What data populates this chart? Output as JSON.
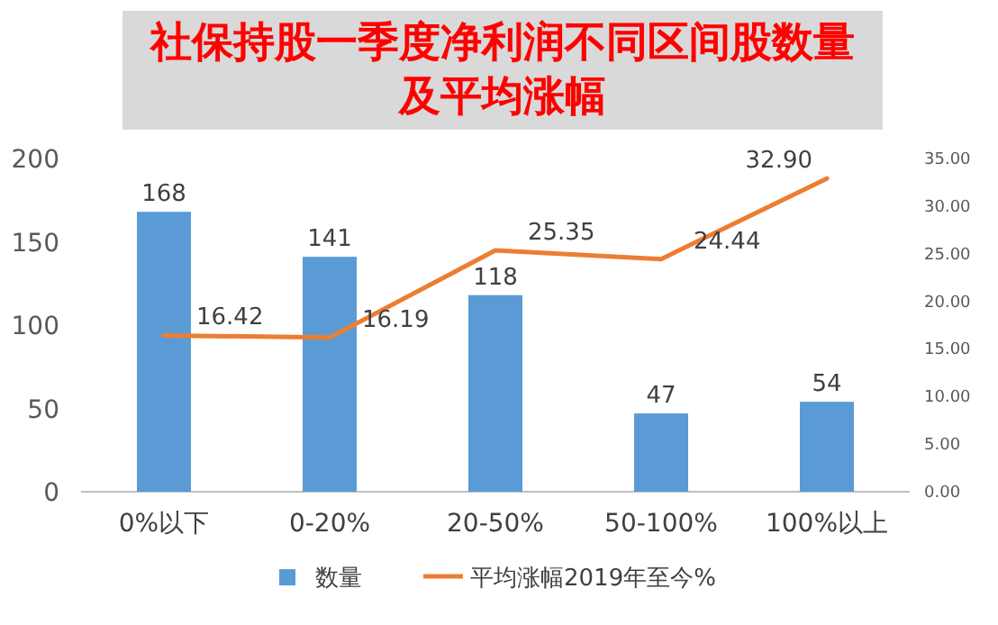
{
  "chart_data": {
    "type": "bar",
    "title": "社保持股一季度净利润不同区间股数量及平均涨幅",
    "categories": [
      "0%以下",
      "0-20%",
      "20-50%",
      "50-100%",
      "100%以上"
    ],
    "series": [
      {
        "name": "数量",
        "color": "#5b9bd5",
        "values": [
          168,
          141,
          118,
          47,
          54
        ],
        "value_labels": [
          "168",
          "141",
          "118",
          "47",
          "54"
        ]
      },
      {
        "name": "平均涨幅2019年至今%",
        "type": "line",
        "axis": "y2",
        "color": "#ed7d31",
        "values": [
          16.42,
          16.19,
          25.35,
          24.44,
          32.9
        ],
        "value_labels": [
          "16.42",
          "16.19",
          "25.35",
          "24.44",
          "32.90"
        ]
      }
    ],
    "ylim": [
      0,
      200
    ],
    "yticks": [
      0,
      50,
      100,
      150,
      200
    ],
    "y2lim": [
      0,
      35
    ],
    "y2ticks": [
      {
        "value": 0,
        "label": "0.00"
      },
      {
        "value": 5,
        "label": "5.00"
      },
      {
        "value": 10,
        "label": "10.00"
      },
      {
        "value": 15,
        "label": "15.00"
      },
      {
        "value": 20,
        "label": "20.00"
      },
      {
        "value": 25,
        "label": "25.00"
      },
      {
        "value": 30,
        "label": "30.00"
      },
      {
        "value": 35,
        "label": "35.00"
      }
    ],
    "legend": "bottom"
  }
}
